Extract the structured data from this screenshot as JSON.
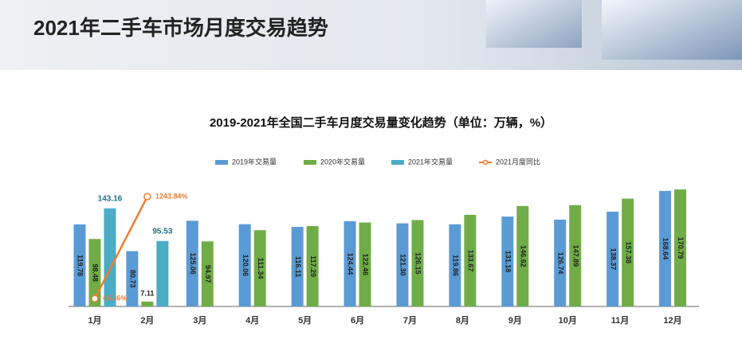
{
  "header": {
    "title": "2021年二手车市场月度交易趋势"
  },
  "chart_data": {
    "type": "bar",
    "title": "2019-2021年全国二手车月度交易量变化趋势（单位：万辆，%）",
    "categories": [
      "1月",
      "2月",
      "3月",
      "4月",
      "5月",
      "6月",
      "7月",
      "8月",
      "9月",
      "10月",
      "11月",
      "12月"
    ],
    "series": [
      {
        "name": "2019年交易量",
        "color": "#5b9bd5",
        "values": [
          119.78,
          80.73,
          125.06,
          120.06,
          116.11,
          124.44,
          121.3,
          119.86,
          131.18,
          126.74,
          138.37,
          168.64
        ],
        "value_labels": [
          "119.78",
          "80.73",
          "125.06",
          "120.06",
          "116.11",
          "124.44",
          "121.30",
          "119.86",
          "131.18",
          "126.74",
          "138.37",
          "168.64"
        ]
      },
      {
        "name": "2020年交易量",
        "color": "#70ad47",
        "values": [
          98.48,
          7.11,
          94.97,
          111.34,
          117.29,
          122.46,
          126.15,
          133.67,
          146.62,
          147.89,
          157.38,
          170.79
        ],
        "value_labels": [
          "98.48",
          "7.11",
          "94.97",
          "111.34",
          "117.29",
          "122.46",
          "126.15",
          "133.67",
          "146.62",
          "147.89",
          "157.38",
          "170.79"
        ]
      },
      {
        "name": "2021年交易量",
        "color": "#4bacc6",
        "values": [
          143.16,
          95.53,
          null,
          null,
          null,
          null,
          null,
          null,
          null,
          null,
          null,
          null
        ],
        "value_labels": [
          "143.16",
          "95.53",
          null,
          null,
          null,
          null,
          null,
          null,
          null,
          null,
          null,
          null
        ]
      },
      {
        "name": "2021月度同比",
        "color": "#ed7d31",
        "type": "line",
        "axis": "y2",
        "values": [
          45.36,
          1243.84,
          null,
          null,
          null,
          null,
          null,
          null,
          null,
          null,
          null,
          null
        ],
        "value_labels": [
          "45.36%",
          "1243.84%",
          null,
          null,
          null,
          null,
          null,
          null,
          null,
          null,
          null,
          null
        ]
      }
    ]
  }
}
